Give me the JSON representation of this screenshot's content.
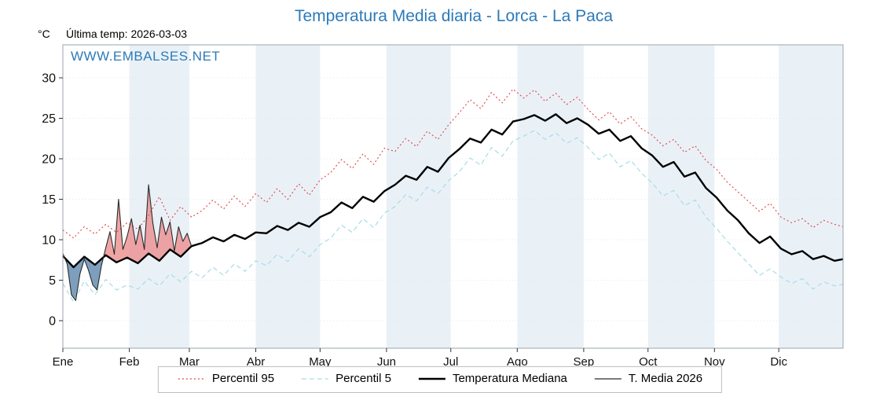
{
  "title": "Temperatura Media diaria - Lorca - La Paca",
  "header": {
    "unit": "°C",
    "last_temp": "Última temp: 2026-03-03"
  },
  "watermark": "WWW.EMBALSES.NET",
  "colors": {
    "accent": "#2d7ab8",
    "band": "#e9f1f7",
    "grid": "#e2e8ec",
    "axis": "#9aa5ad",
    "tick": "#333333",
    "p95": "#e04343",
    "p5": "#a9dbe9",
    "median": "#000000",
    "t2026": "#2a2a2a",
    "fill_above": "#ec8f8f",
    "fill_below": "#5d87ac"
  },
  "chart_data": {
    "type": "line",
    "title": "Temperatura Media diaria - Lorca - La Paca",
    "ylabel": "°C",
    "ylim": [
      -2.5,
      34
    ],
    "grid": true,
    "legend_position": "bottom",
    "x_axis": {
      "tick_labels": [
        "Ene",
        "Feb",
        "Mar",
        "Abr",
        "May",
        "Jun",
        "Jul",
        "Ago",
        "Sep",
        "Oct",
        "Nov",
        "Dic"
      ],
      "month_start_days": [
        1,
        32,
        60,
        91,
        121,
        152,
        182,
        213,
        244,
        274,
        305,
        335
      ],
      "days_in_year": 365
    },
    "y_axis": {
      "ticks": [
        0,
        5,
        10,
        15,
        20,
        25,
        30
      ]
    },
    "series": [
      {
        "name": "Percentil 95",
        "style": "dotted",
        "color": "#e04343",
        "width": 1.1,
        "x_start": 1,
        "x_step": 5,
        "values": [
          11.2,
          10.2,
          11.6,
          10.7,
          11.9,
          10.9,
          12.1,
          11.3,
          13.0,
          15.3,
          12.4,
          14.1,
          12.8,
          13.6,
          14.9,
          13.8,
          15.4,
          14.1,
          15.7,
          14.6,
          16.3,
          15.0,
          16.9,
          15.5,
          17.4,
          18.3,
          19.9,
          18.8,
          20.6,
          19.3,
          21.3,
          20.9,
          22.5,
          21.5,
          23.4,
          22.4,
          24.2,
          25.7,
          27.3,
          26.2,
          28.2,
          26.9,
          28.6,
          27.5,
          28.5,
          27.1,
          28.1,
          26.7,
          27.6,
          26.1,
          24.8,
          25.8,
          24.3,
          25.2,
          23.7,
          22.9,
          21.6,
          22.4,
          20.8,
          21.6,
          19.8,
          18.7,
          17.1,
          15.9,
          14.7,
          13.5,
          14.5,
          12.8,
          12.1,
          12.6,
          11.5,
          12.4,
          11.9,
          11.6
        ]
      },
      {
        "name": "Percentil 5",
        "style": "dashed",
        "color": "#a9dbe9",
        "width": 1.2,
        "x_start": 1,
        "x_step": 5,
        "values": [
          4.6,
          2.3,
          4.9,
          3.2,
          5.1,
          3.8,
          4.4,
          3.9,
          5.2,
          4.3,
          5.8,
          4.8,
          6.1,
          5.3,
          6.6,
          5.6,
          7.0,
          6.1,
          7.4,
          6.8,
          8.2,
          7.3,
          8.9,
          7.9,
          9.4,
          10.2,
          11.8,
          10.9,
          12.6,
          11.5,
          13.3,
          14.1,
          15.6,
          14.8,
          16.5,
          15.7,
          17.3,
          18.4,
          20.1,
          19.2,
          21.4,
          20.3,
          22.2,
          22.8,
          23.5,
          22.4,
          23.2,
          21.9,
          22.6,
          21.4,
          19.9,
          20.7,
          19.0,
          19.8,
          18.2,
          17.0,
          15.4,
          16.1,
          14.2,
          14.9,
          12.8,
          11.4,
          9.8,
          8.4,
          7.0,
          5.6,
          6.4,
          5.4,
          4.6,
          5.2,
          3.9,
          4.8,
          4.3,
          4.5
        ]
      },
      {
        "name": "Temperatura Mediana",
        "style": "solid",
        "color": "#000000",
        "width": 2.4,
        "x_start": 1,
        "x_step": 5,
        "values": [
          8.0,
          6.6,
          7.9,
          6.9,
          8.1,
          7.2,
          7.8,
          7.1,
          8.3,
          7.4,
          8.8,
          7.9,
          9.2,
          9.6,
          10.3,
          9.8,
          10.6,
          10.1,
          10.9,
          10.8,
          11.7,
          11.2,
          12.1,
          11.6,
          12.8,
          13.4,
          14.6,
          13.9,
          15.3,
          14.7,
          16.0,
          16.8,
          17.9,
          17.4,
          19.0,
          18.4,
          20.1,
          21.2,
          22.5,
          22.0,
          23.6,
          23.0,
          24.6,
          24.9,
          25.4,
          24.7,
          25.5,
          24.4,
          25.0,
          24.2,
          23.1,
          23.6,
          22.2,
          22.8,
          21.3,
          20.4,
          19.0,
          19.6,
          17.8,
          18.3,
          16.4,
          15.2,
          13.6,
          12.4,
          10.8,
          9.6,
          10.4,
          8.9,
          8.2,
          8.6,
          7.6,
          8.0,
          7.4,
          7.6
        ]
      },
      {
        "name": "T. Media 2026",
        "style": "solid",
        "color": "#2a2a2a",
        "width": 1.1,
        "x_start": 1,
        "x_step": 2,
        "values": [
          8.3,
          7.0,
          3.2,
          2.5,
          5.8,
          7.6,
          6.2,
          4.4,
          3.8,
          6.8,
          9.0,
          11.0,
          8.2,
          15.0,
          8.8,
          10.4,
          12.6,
          9.4,
          11.8,
          8.8,
          16.8,
          12.0,
          9.0,
          12.8,
          10.6,
          12.2,
          8.6,
          11.6,
          9.8,
          10.8,
          9.2
        ]
      }
    ],
    "fill_between": {
      "series_a": "T. Media 2026",
      "series_b": "Temperatura Mediana",
      "above_color": "#ec8f8f",
      "below_color": "#5d87ac"
    }
  }
}
